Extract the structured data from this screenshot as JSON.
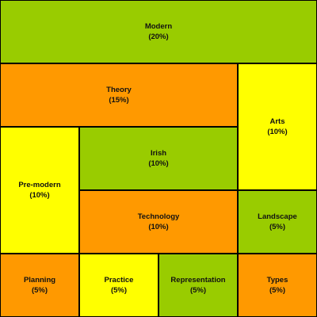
{
  "chart_data": {
    "type": "treemap",
    "title": "",
    "colors": {
      "green": "#99CC00",
      "orange": "#FF9900",
      "yellow": "#FFFF00",
      "border": "#000000"
    },
    "items": [
      {
        "label": "Modern",
        "value_text": "(20%)",
        "value": 20,
        "color": "#99CC00"
      },
      {
        "label": "Theory",
        "value_text": "(15%)",
        "value": 15,
        "color": "#FF9900"
      },
      {
        "label": "Arts",
        "value_text": "(10%)",
        "value": 10,
        "color": "#FFFF00"
      },
      {
        "label": "Pre-modern",
        "value_text": "(10%)",
        "value": 10,
        "color": "#FFFF00"
      },
      {
        "label": "Irish",
        "value_text": "(10%)",
        "value": 10,
        "color": "#99CC00"
      },
      {
        "label": "Technology",
        "value_text": "(10%)",
        "value": 10,
        "color": "#FF9900"
      },
      {
        "label": "Landscape",
        "value_text": "(5%)",
        "value": 5,
        "color": "#99CC00"
      },
      {
        "label": "Planning",
        "value_text": "(5%)",
        "value": 5,
        "color": "#FF9900"
      },
      {
        "label": "Practice",
        "value_text": "(5%)",
        "value": 5,
        "color": "#FFFF00"
      },
      {
        "label": "Representation",
        "value_text": "(5%)",
        "value": 5,
        "color": "#99CC00"
      },
      {
        "label": "Types",
        "value_text": "(5%)",
        "value": 5,
        "color": "#FF9900"
      }
    ]
  }
}
